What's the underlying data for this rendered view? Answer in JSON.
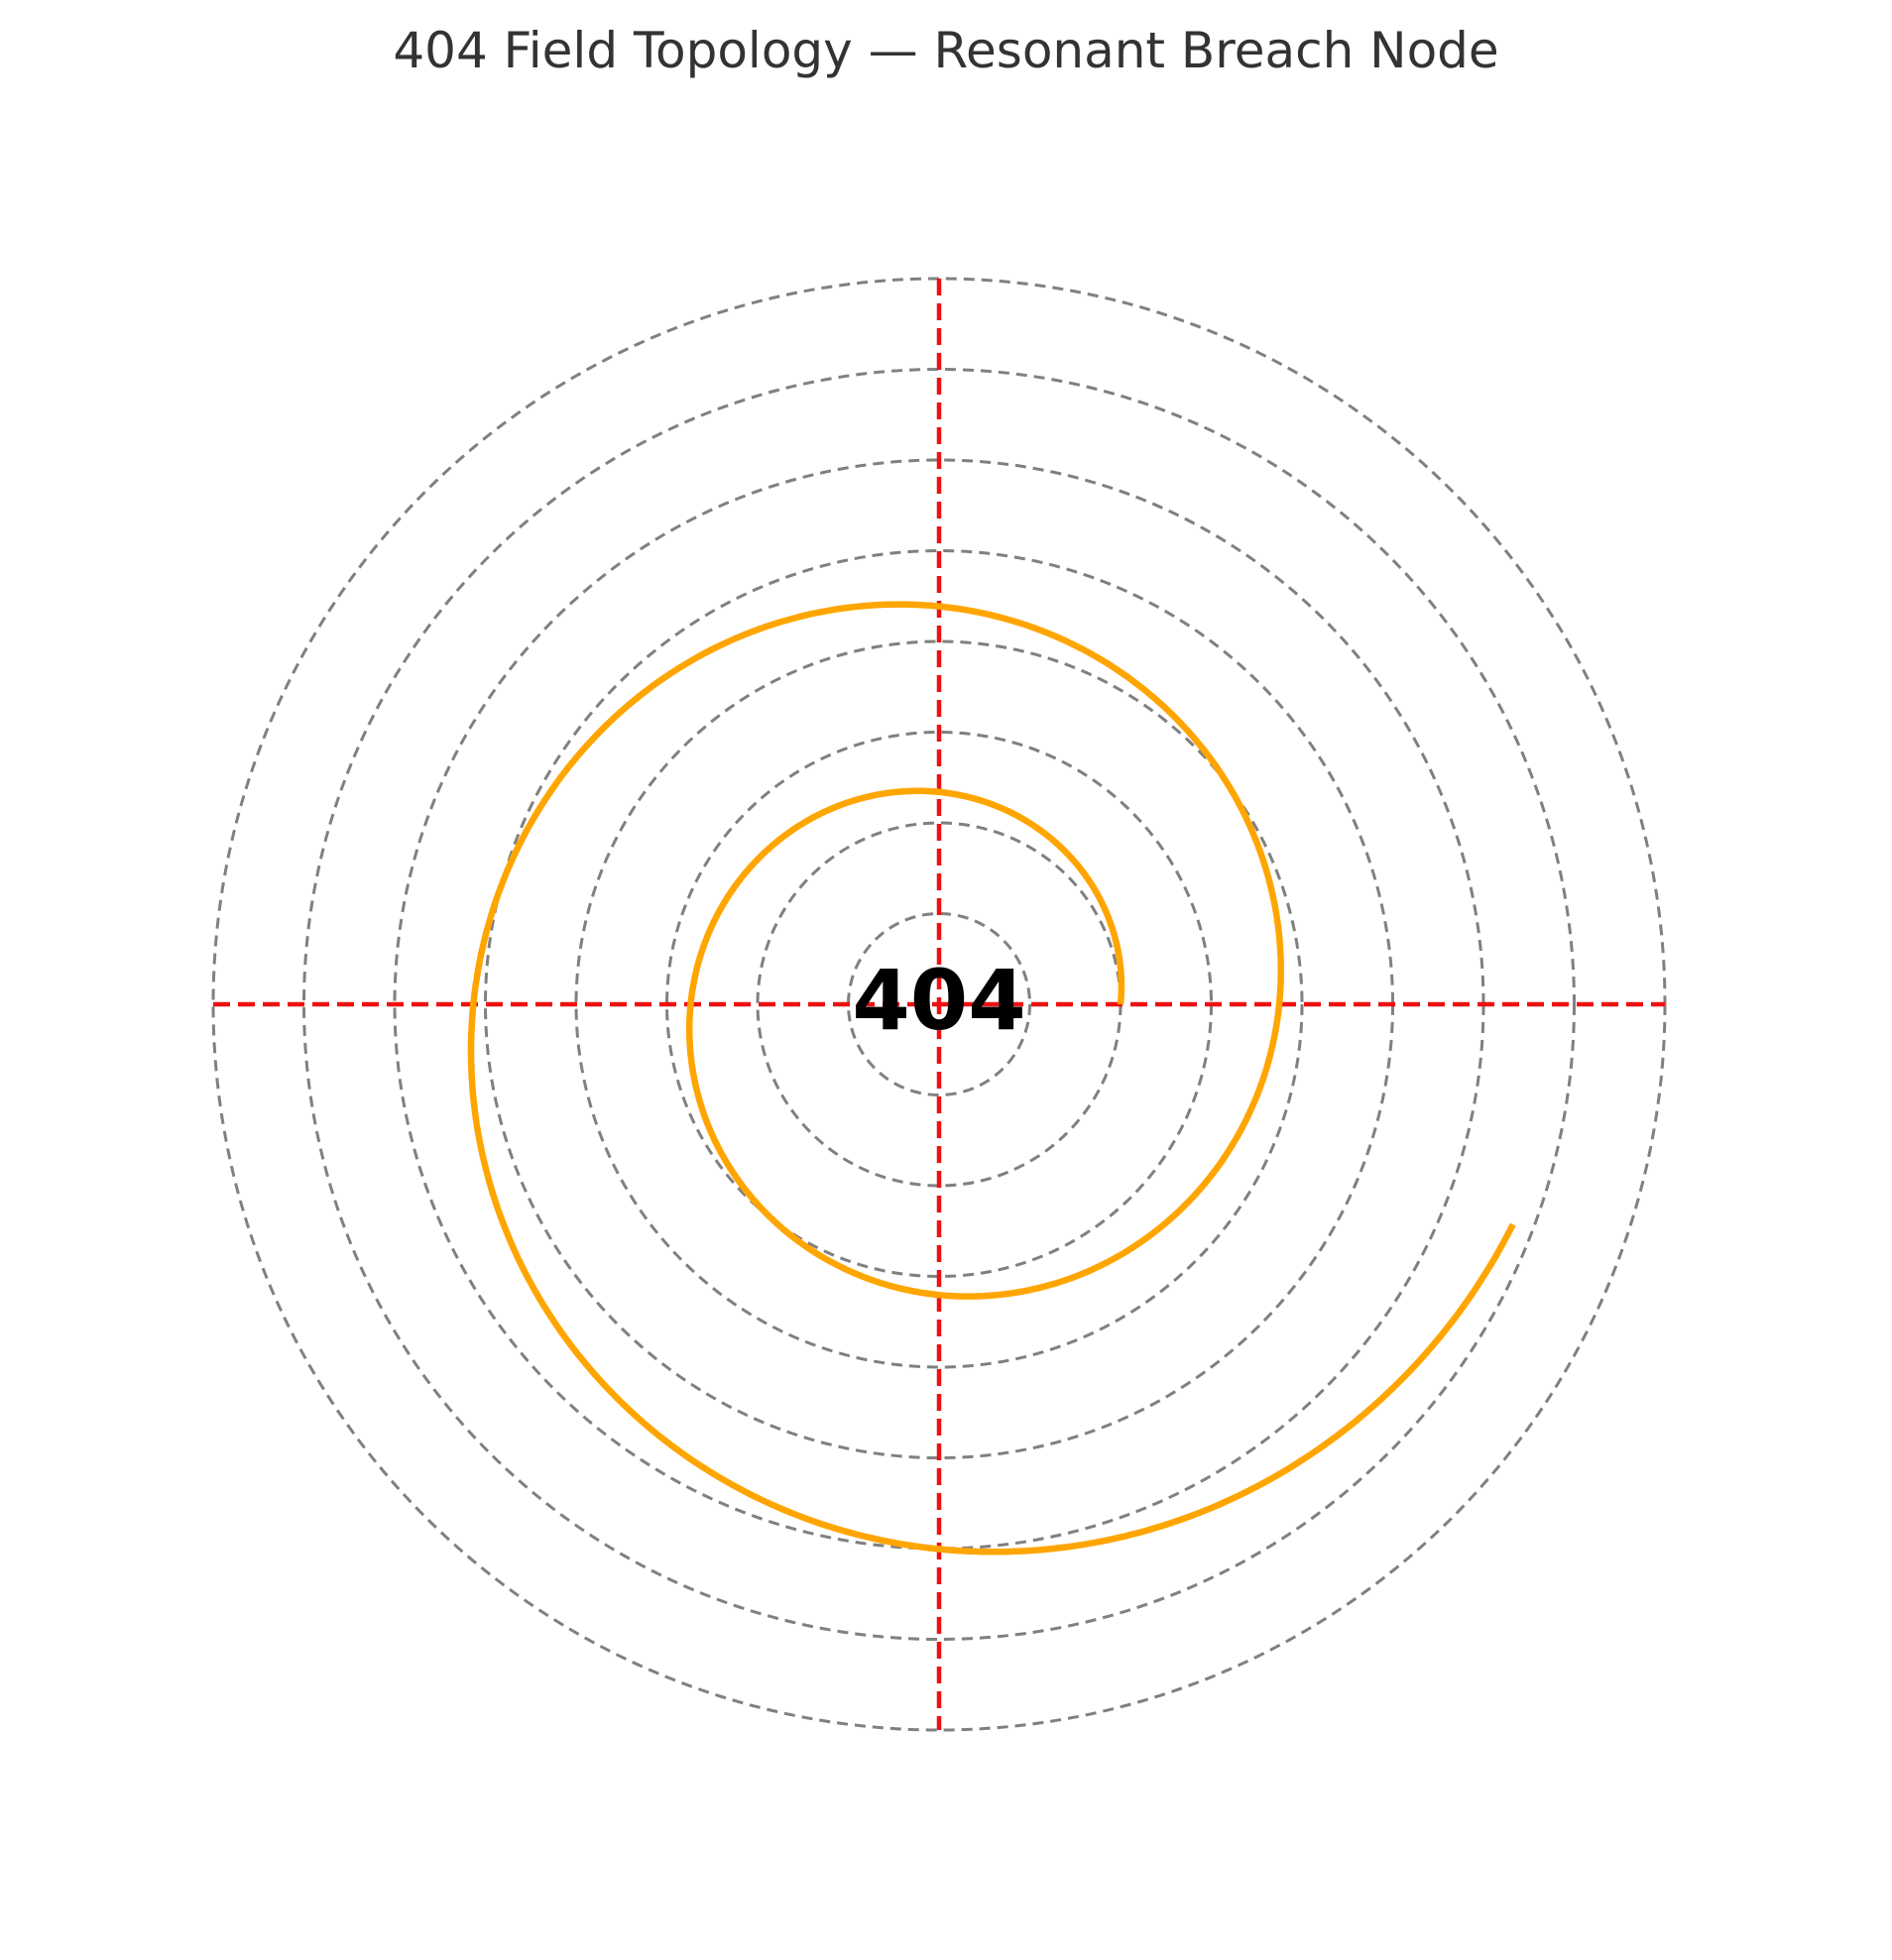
{
  "title": "404 Field Topology — Resonant Breach Node",
  "center_label": "404",
  "colors": {
    "background": "#ffffff",
    "title": "#333333",
    "rings": "#808080",
    "crosshair": "#ee1111",
    "spiral": "#ffa500",
    "center_label": "#000000"
  },
  "diagram": {
    "rings": [
      1,
      2,
      3,
      4,
      5,
      6,
      7,
      8
    ],
    "spiral": {
      "a": 2.0,
      "b": 0.1,
      "theta_start": 0.0,
      "theta_end": 12.2
    }
  }
}
